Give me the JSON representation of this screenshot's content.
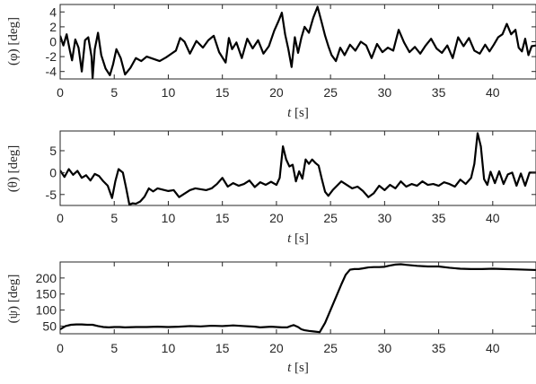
{
  "chart_data": [
    {
      "type": "line",
      "ylabel": "(φ) [deg]",
      "xlabel_var": "t",
      "xlabel_unit": "[s]",
      "xlim": [
        0,
        44
      ],
      "ylim": [
        -5,
        5
      ],
      "xticks": [
        0,
        5,
        10,
        15,
        20,
        25,
        30,
        35,
        40
      ],
      "yticks": [
        -4,
        -2,
        0,
        2,
        4
      ],
      "line_color": "#000000",
      "series": [
        {
          "x": [
            0,
            0.3,
            0.6,
            0.9,
            1.1,
            1.4,
            1.7,
            2.0,
            2.3,
            2.6,
            2.9,
            3.0,
            3.2,
            3.5,
            3.8,
            4.2,
            4.6,
            4.9,
            5.2,
            5.6,
            6.0,
            6.5,
            7.0,
            7.5,
            8.0,
            8.6,
            9.2,
            9.8,
            10.3,
            10.7,
            11.1,
            11.5,
            12.0,
            12.6,
            13.2,
            13.7,
            14.2,
            14.7,
            15.3,
            15.6,
            15.9,
            16.3,
            16.8,
            17.3,
            17.8,
            18.3,
            18.8,
            19.3,
            19.8,
            20.2,
            20.5,
            20.8,
            21.1,
            21.4,
            21.7,
            22.0,
            22.3,
            22.6,
            23.0,
            23.4,
            23.8,
            24.2,
            24.5,
            24.8,
            25.1,
            25.5,
            25.9,
            26.3,
            26.8,
            27.3,
            27.8,
            28.3,
            28.8,
            29.3,
            29.8,
            30.3,
            30.8,
            31.3,
            31.8,
            32.3,
            32.8,
            33.3,
            33.8,
            34.3,
            34.8,
            35.3,
            35.8,
            36.3,
            36.8,
            37.3,
            37.8,
            38.3,
            38.8,
            39.3,
            39.7,
            40.1,
            40.5,
            40.9,
            41.3,
            41.7,
            42.1,
            42.4,
            42.7,
            43.0,
            43.3,
            43.6,
            44.0
          ],
          "y": [
            0.8,
            -0.5,
            1.0,
            -1.2,
            -2.5,
            0.3,
            -0.8,
            -4.0,
            0.2,
            0.6,
            -2.0,
            -4.9,
            -1.0,
            1.2,
            -1.8,
            -3.6,
            -4.5,
            -3.0,
            -1.0,
            -2.2,
            -4.4,
            -3.5,
            -2.2,
            -2.6,
            -2.0,
            -2.3,
            -2.6,
            -2.1,
            -1.6,
            -1.2,
            0.5,
            0.0,
            -1.6,
            0.1,
            -0.8,
            0.2,
            0.8,
            -1.4,
            -2.8,
            0.5,
            -1.0,
            -0.1,
            -2.2,
            0.4,
            -0.9,
            0.2,
            -1.6,
            -0.6,
            1.5,
            2.8,
            3.9,
            1.0,
            -1.0,
            -3.4,
            0.6,
            -1.5,
            0.5,
            2.0,
            1.2,
            3.2,
            4.7,
            2.5,
            0.8,
            -0.6,
            -1.8,
            -2.6,
            -0.8,
            -1.8,
            -0.4,
            -1.2,
            0.0,
            -0.5,
            -2.2,
            -0.3,
            -1.4,
            -0.8,
            -1.2,
            1.6,
            -0.1,
            -1.4,
            -0.7,
            -1.6,
            -0.5,
            0.4,
            -0.9,
            -1.5,
            -0.5,
            -2.2,
            0.6,
            -0.6,
            0.5,
            -1.2,
            -1.6,
            -0.4,
            -1.3,
            -0.4,
            0.6,
            1.0,
            2.4,
            1.0,
            1.6,
            -0.8,
            -1.3,
            0.4,
            -1.8,
            -0.6,
            -0.5
          ]
        }
      ]
    },
    {
      "type": "line",
      "ylabel": "(θ) [deg]",
      "xlabel_var": "t",
      "xlabel_unit": "[s]",
      "xlim": [
        0,
        44
      ],
      "ylim": [
        -7.5,
        9.5
      ],
      "xticks": [
        0,
        5,
        10,
        15,
        20,
        25,
        30,
        35,
        40
      ],
      "yticks": [
        -5,
        0,
        5
      ],
      "line_color": "#000000",
      "series": [
        {
          "x": [
            0,
            0.4,
            0.8,
            1.2,
            1.6,
            2.0,
            2.4,
            2.8,
            3.2,
            3.6,
            4.0,
            4.4,
            4.8,
            5.1,
            5.4,
            5.8,
            6.1,
            6.4,
            6.7,
            7.0,
            7.4,
            7.8,
            8.2,
            8.6,
            9.0,
            9.5,
            10.0,
            10.5,
            11.0,
            11.5,
            12.0,
            12.5,
            13.0,
            13.5,
            14.0,
            14.5,
            15.0,
            15.5,
            16.0,
            16.5,
            17.0,
            17.5,
            18.0,
            18.5,
            19.0,
            19.5,
            20.0,
            20.3,
            20.6,
            20.9,
            21.2,
            21.5,
            21.8,
            22.1,
            22.4,
            22.7,
            23.0,
            23.3,
            23.6,
            23.9,
            24.2,
            24.5,
            24.8,
            25.2,
            25.6,
            26.0,
            26.5,
            27.0,
            27.5,
            28.0,
            28.5,
            29.0,
            29.5,
            30.0,
            30.5,
            31.0,
            31.5,
            32.0,
            32.5,
            33.0,
            33.5,
            34.0,
            34.5,
            35.0,
            35.5,
            36.0,
            36.5,
            37.0,
            37.5,
            38.0,
            38.3,
            38.6,
            38.9,
            39.2,
            39.5,
            39.8,
            40.2,
            40.6,
            41.0,
            41.4,
            41.8,
            42.2,
            42.6,
            43.0,
            43.4,
            44.0
          ],
          "y": [
            0.5,
            -1.0,
            0.8,
            -0.5,
            0.4,
            -1.2,
            -0.6,
            -1.8,
            -0.3,
            -0.8,
            -2.0,
            -3.0,
            -5.8,
            -2.0,
            0.8,
            0.0,
            -3.5,
            -7.3,
            -7.0,
            -7.1,
            -6.6,
            -5.5,
            -3.6,
            -4.3,
            -3.6,
            -3.9,
            -4.2,
            -4.0,
            -5.6,
            -4.8,
            -4.0,
            -3.6,
            -3.8,
            -4.0,
            -3.6,
            -2.6,
            -1.2,
            -3.2,
            -2.4,
            -3.0,
            -2.6,
            -1.8,
            -3.3,
            -2.2,
            -2.8,
            -2.1,
            -2.8,
            -1.2,
            6.0,
            3.0,
            1.4,
            1.8,
            -2.0,
            0.3,
            -1.4,
            3.0,
            2.0,
            3.0,
            2.2,
            1.6,
            -1.5,
            -4.4,
            -5.3,
            -4.0,
            -3.0,
            -2.0,
            -2.8,
            -3.6,
            -3.2,
            -4.2,
            -5.6,
            -4.7,
            -3.0,
            -4.0,
            -2.8,
            -3.6,
            -2.0,
            -3.2,
            -2.6,
            -3.0,
            -2.0,
            -2.8,
            -2.6,
            -3.0,
            -2.2,
            -2.6,
            -3.2,
            -1.6,
            -2.6,
            -1.2,
            2.0,
            9.0,
            6.0,
            -1.5,
            -2.8,
            0.2,
            -2.4,
            0.3,
            -2.6,
            -0.4,
            0.0,
            -3.0,
            -0.2,
            -3.0,
            0.0,
            0.0
          ]
        }
      ]
    },
    {
      "type": "line",
      "ylabel": "(ψ) [deg]",
      "xlabel_var": "t",
      "xlabel_unit": "[s]",
      "xlim": [
        0,
        44
      ],
      "ylim": [
        26,
        250
      ],
      "xticks": [
        0,
        5,
        10,
        15,
        20,
        25,
        30,
        35,
        40
      ],
      "yticks": [
        50,
        100,
        150,
        200
      ],
      "line_color": "#000000",
      "series": [
        {
          "x": [
            0,
            0.5,
            1.0,
            1.5,
            2.0,
            2.5,
            3.0,
            3.5,
            4.0,
            4.5,
            5.0,
            5.5,
            6.0,
            7.0,
            8.0,
            9.0,
            10.0,
            11.0,
            12.0,
            13.0,
            14.0,
            15.0,
            16.0,
            17.0,
            18.0,
            18.5,
            19.0,
            19.5,
            20.0,
            20.5,
            21.0,
            21.3,
            21.6,
            22.0,
            22.3,
            22.6,
            23.0,
            23.5,
            24.0,
            24.5,
            25.0,
            25.5,
            26.0,
            26.4,
            26.8,
            27.2,
            27.6,
            28.0,
            28.5,
            29.0,
            29.5,
            30.0,
            30.5,
            31.0,
            31.5,
            32.0,
            33.0,
            34.0,
            35.0,
            36.0,
            37.0,
            38.0,
            39.0,
            40.0,
            41.0,
            42.0,
            43.0,
            44.0
          ],
          "y": [
            40,
            50,
            54,
            55,
            55,
            54,
            54,
            50,
            47,
            46,
            47,
            47,
            46,
            47,
            47,
            48,
            47,
            48,
            50,
            49,
            51,
            50,
            52,
            50,
            48,
            46,
            47,
            48,
            47,
            46,
            46,
            50,
            53,
            47,
            40,
            37,
            35,
            33,
            31,
            60,
            100,
            140,
            180,
            210,
            226,
            228,
            228,
            230,
            233,
            234,
            234,
            235,
            239,
            242,
            243,
            241,
            238,
            236,
            236,
            232,
            229,
            228,
            228,
            229,
            228,
            227,
            226,
            225
          ]
        }
      ]
    }
  ]
}
